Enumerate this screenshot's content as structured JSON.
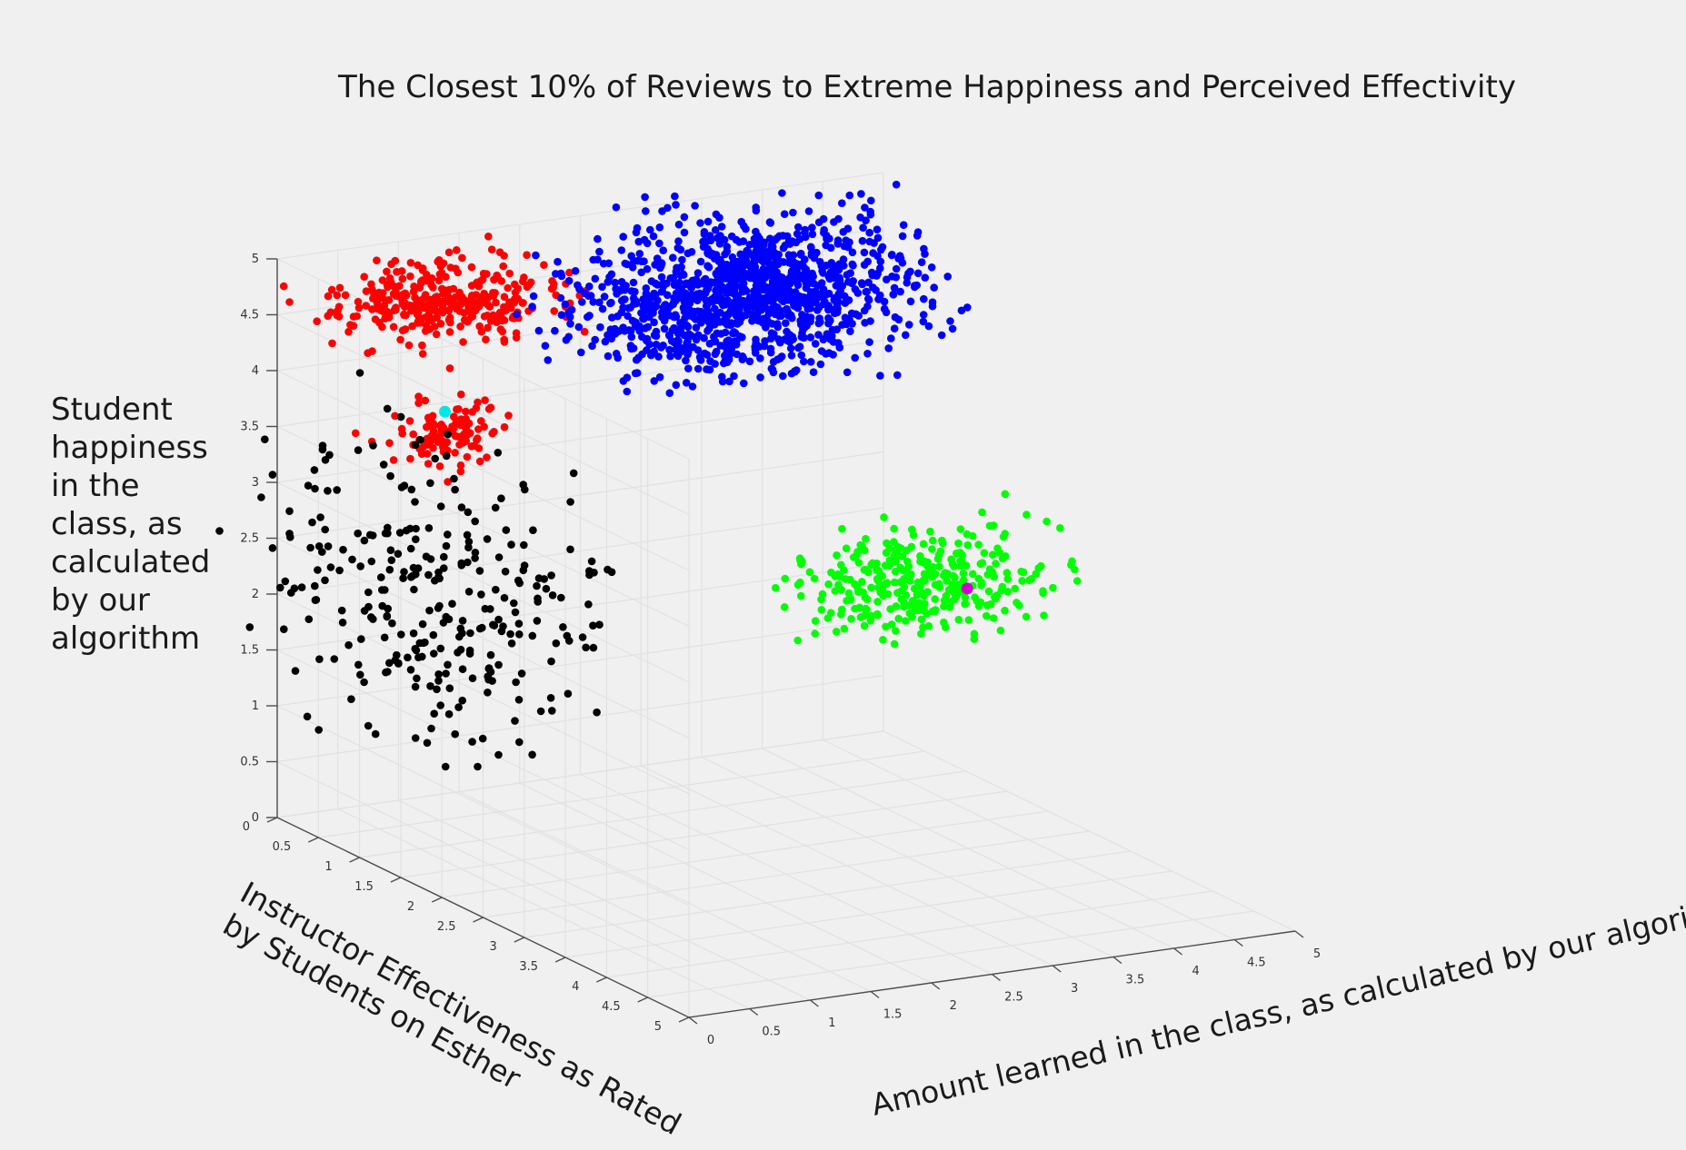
{
  "chart_data": {
    "type": "scatter",
    "title": "The Closest 10% of Reviews to Extreme Happiness and Perceived Effectivity",
    "xlabel": "Amount learned in the class, as calculated by our algorithm",
    "ylabel": "Instructor Effectiveness as Rated by Students on Esther",
    "zlabel": "Student happiness in the class, as calculated by our algorithm",
    "ylabel_lines": [
      "Instructor Effectiveness as Rated",
      "by Students on Esther"
    ],
    "zlabel_lines": [
      "Student",
      "happiness",
      "in the",
      "class, as",
      "calculated",
      "by our",
      "algorithm"
    ],
    "xlim": [
      0,
      5
    ],
    "ylim": [
      0,
      5
    ],
    "zlim": [
      0,
      5
    ],
    "ticks": [
      "0",
      "0.5",
      "1",
      "1.5",
      "2",
      "2.5",
      "3",
      "3.5",
      "4",
      "4.5",
      "5"
    ],
    "grid": true,
    "view": "3d",
    "clusters": [
      {
        "color": "#ff0000",
        "count": 330,
        "center": [
          1.2,
          0.2,
          4.5
        ],
        "spread": [
          0.45,
          0.25,
          0.16
        ]
      },
      {
        "color": "#ff0000",
        "count": 110,
        "center": [
          0.55,
          1.25,
          3.8
        ],
        "spread": [
          0.22,
          0.2,
          0.13
        ]
      },
      {
        "color": "#0000ff",
        "count": 1200,
        "center": [
          3.7,
          0.25,
          4.2
        ],
        "spread": [
          0.65,
          0.35,
          0.3
        ]
      },
      {
        "color": "#00ff00",
        "count": 330,
        "center": [
          4.2,
          1.7,
          2.1
        ],
        "spread": [
          0.45,
          0.3,
          0.2
        ]
      },
      {
        "color": "#000000",
        "count": 290,
        "center": [
          0.5,
          1.1,
          2.3
        ],
        "spread": [
          0.5,
          0.75,
          0.6
        ]
      }
    ],
    "highlights": [
      {
        "color": "#00e5e5",
        "point": [
          0.5,
          1.3,
          4.02
        ]
      },
      {
        "color": "#d200d2",
        "point": [
          4.4,
          1.9,
          2.05
        ]
      }
    ]
  }
}
